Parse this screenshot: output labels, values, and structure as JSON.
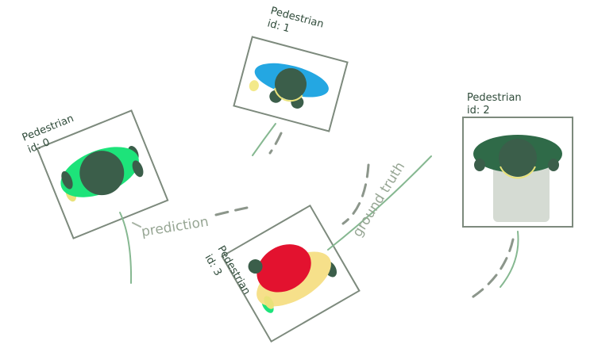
{
  "diagram": {
    "class_label": "Pedestrian",
    "ids": {
      "p0": "id: 0",
      "p1": "id: 1",
      "p2": "id: 2",
      "p3": "id: 3"
    },
    "annotations": {
      "prediction": "prediction",
      "ground_truth": "ground truth"
    },
    "colors": {
      "box_stroke": "#7d8a7d",
      "head": "#3b5e4a",
      "ground_truth_line": "#86b891",
      "prediction_line": "#8c968b",
      "p0_shoulders": "#1de37a",
      "p1_shoulders": "#24a7e2",
      "p2_shoulders": "#2f6a48",
      "p2_body": "#d5dbd3",
      "p3_shoulders": "#f6e08a",
      "p3_blob": "#e3122f"
    },
    "icons": [
      "pedestrian-topdown-icon"
    ]
  }
}
